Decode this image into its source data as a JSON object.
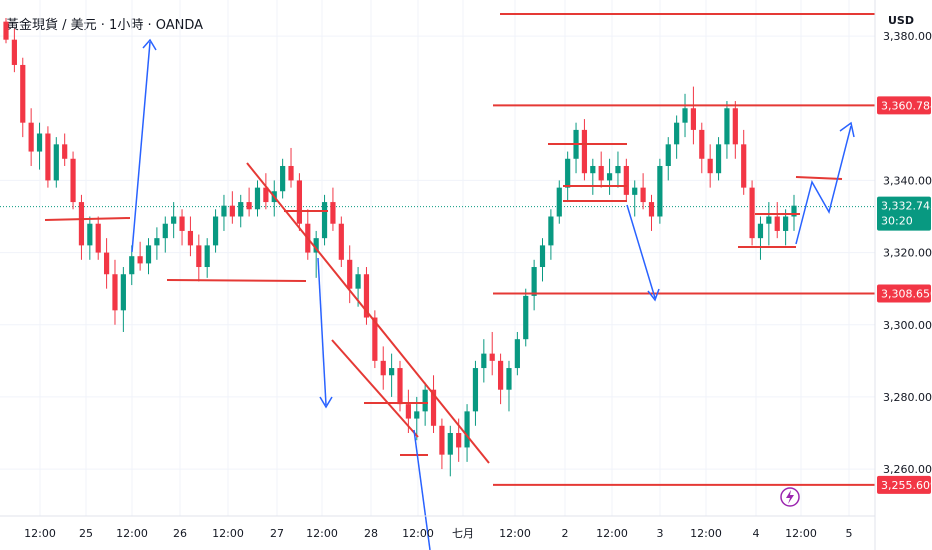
{
  "header": {
    "title": "黃金現貨 / 美元 · 1小時 · OANDA"
  },
  "chart_data": {
    "type": "candlestick",
    "title": "黃金現貨 / 美元 · 1小時 · OANDA",
    "currency": "USD",
    "ylim": [
      3247,
      3390
    ],
    "y_ticks": [
      {
        "label": "3,380.000",
        "value": 3380
      },
      {
        "label": "3,340.000",
        "value": 3340
      },
      {
        "label": "3,320.000",
        "value": 3320
      },
      {
        "label": "3,300.000",
        "value": 3300
      },
      {
        "label": "3,280.000",
        "value": 3280
      },
      {
        "label": "3,260.000",
        "value": 3260
      }
    ],
    "x_ticks": [
      "12:00",
      "25",
      "12:00",
      "26",
      "12:00",
      "27",
      "12:00",
      "28",
      "12:00",
      "七月",
      "12:00",
      "2",
      "12:00",
      "3",
      "12:00",
      "4",
      "12:00",
      "5"
    ],
    "price_labels": [
      {
        "label": "3,360.784",
        "value": 3360.784,
        "color": "#f23645"
      },
      {
        "label": "3,308.650",
        "value": 3308.65,
        "color": "#f23645"
      },
      {
        "label": "3,255.609",
        "value": 3255.609,
        "color": "#f23645"
      }
    ],
    "current_price": {
      "label": "3,332.745",
      "countdown": "30:20",
      "value": 3332.745,
      "color": "#089981"
    },
    "horizontal_levels": [
      3360.784,
      3308.65,
      3255.609
    ],
    "colors": {
      "up": "#089981",
      "down": "#f23645",
      "annotation": "#e53935",
      "projection": "#2962ff"
    },
    "candles": [
      [
        3384,
        3385,
        3378,
        3379
      ],
      [
        3379,
        3382,
        3370,
        3372
      ],
      [
        3372,
        3374,
        3352,
        3356
      ],
      [
        3356,
        3360,
        3344,
        3348
      ],
      [
        3348,
        3356,
        3343,
        3353
      ],
      [
        3353,
        3355,
        3338,
        3340
      ],
      [
        3340,
        3352,
        3338,
        3350
      ],
      [
        3350,
        3353,
        3344,
        3346
      ],
      [
        3346,
        3348,
        3332,
        3334
      ],
      [
        3334,
        3336,
        3318,
        3322
      ],
      [
        3322,
        3330,
        3318,
        3328
      ],
      [
        3328,
        3330,
        3318,
        3320
      ],
      [
        3320,
        3324,
        3310,
        3314
      ],
      [
        3314,
        3318,
        3300,
        3304
      ],
      [
        3304,
        3316,
        3298,
        3314
      ],
      [
        3314,
        3322,
        3311,
        3319
      ],
      [
        3319,
        3323,
        3315,
        3317
      ],
      [
        3317,
        3324,
        3314,
        3322
      ],
      [
        3322,
        3327,
        3318,
        3324
      ],
      [
        3324,
        3330,
        3320,
        3328
      ],
      [
        3328,
        3334,
        3324,
        3330
      ],
      [
        3330,
        3332,
        3322,
        3326
      ],
      [
        3326,
        3330,
        3319,
        3322
      ],
      [
        3322,
        3325,
        3312,
        3316
      ],
      [
        3316,
        3324,
        3313,
        3322
      ],
      [
        3322,
        3332,
        3320,
        3330
      ],
      [
        3330,
        3336,
        3326,
        3333
      ],
      [
        3333,
        3337,
        3328,
        3330
      ],
      [
        3330,
        3336,
        3327,
        3334
      ],
      [
        3334,
        3338,
        3330,
        3332
      ],
      [
        3332,
        3340,
        3330,
        3338
      ],
      [
        3338,
        3342,
        3332,
        3334
      ],
      [
        3334,
        3340,
        3330,
        3337
      ],
      [
        3337,
        3346,
        3335,
        3344
      ],
      [
        3344,
        3349,
        3338,
        3340
      ],
      [
        3340,
        3342,
        3326,
        3328
      ],
      [
        3328,
        3332,
        3318,
        3320
      ],
      [
        3320,
        3326,
        3313,
        3324
      ],
      [
        3324,
        3336,
        3322,
        3334
      ],
      [
        3334,
        3338,
        3326,
        3328
      ],
      [
        3328,
        3330,
        3316,
        3318
      ],
      [
        3318,
        3322,
        3306,
        3310
      ],
      [
        3310,
        3316,
        3305,
        3314
      ],
      [
        3314,
        3316,
        3300,
        3302
      ],
      [
        3302,
        3304,
        3288,
        3290
      ],
      [
        3290,
        3294,
        3282,
        3286
      ],
      [
        3286,
        3292,
        3280,
        3288
      ],
      [
        3288,
        3290,
        3276,
        3278
      ],
      [
        3278,
        3282,
        3270,
        3274
      ],
      [
        3274,
        3280,
        3268,
        3276
      ],
      [
        3276,
        3284,
        3272,
        3282
      ],
      [
        3282,
        3286,
        3270,
        3272
      ],
      [
        3272,
        3274,
        3260,
        3264
      ],
      [
        3264,
        3272,
        3258,
        3270
      ],
      [
        3270,
        3274,
        3262,
        3266
      ],
      [
        3266,
        3278,
        3262,
        3276
      ],
      [
        3276,
        3290,
        3272,
        3288
      ],
      [
        3288,
        3296,
        3284,
        3292
      ],
      [
        3292,
        3298,
        3286,
        3290
      ],
      [
        3290,
        3292,
        3278,
        3282
      ],
      [
        3282,
        3290,
        3276,
        3288
      ],
      [
        3288,
        3298,
        3286,
        3296
      ],
      [
        3296,
        3310,
        3294,
        3308
      ],
      [
        3308,
        3318,
        3304,
        3316
      ],
      [
        3316,
        3324,
        3312,
        3322
      ],
      [
        3322,
        3332,
        3318,
        3330
      ],
      [
        3330,
        3340,
        3328,
        3338
      ],
      [
        3338,
        3348,
        3334,
        3346
      ],
      [
        3346,
        3356,
        3342,
        3354
      ],
      [
        3354,
        3357,
        3340,
        3342
      ],
      [
        3342,
        3346,
        3336,
        3344
      ],
      [
        3344,
        3348,
        3338,
        3340
      ],
      [
        3340,
        3346,
        3336,
        3342
      ],
      [
        3342,
        3348,
        3338,
        3344
      ],
      [
        3344,
        3346,
        3334,
        3336
      ],
      [
        3336,
        3340,
        3330,
        3338
      ],
      [
        3338,
        3342,
        3332,
        3334
      ],
      [
        3334,
        3336,
        3326,
        3330
      ],
      [
        3330,
        3346,
        3328,
        3344
      ],
      [
        3344,
        3352,
        3340,
        3350
      ],
      [
        3350,
        3358,
        3346,
        3356
      ],
      [
        3356,
        3364,
        3352,
        3360
      ],
      [
        3360,
        3366,
        3350,
        3354
      ],
      [
        3354,
        3356,
        3342,
        3346
      ],
      [
        3346,
        3350,
        3338,
        3342
      ],
      [
        3342,
        3352,
        3340,
        3350
      ],
      [
        3350,
        3362,
        3346,
        3360
      ],
      [
        3360,
        3362,
        3346,
        3350
      ],
      [
        3350,
        3354,
        3336,
        3338
      ],
      [
        3338,
        3340,
        3322,
        3324
      ],
      [
        3324,
        3330,
        3318,
        3328
      ],
      [
        3328,
        3334,
        3322,
        3330
      ],
      [
        3330,
        3334,
        3324,
        3326
      ],
      [
        3326,
        3332,
        3322,
        3330
      ],
      [
        3330,
        3336,
        3326,
        3333
      ]
    ]
  }
}
